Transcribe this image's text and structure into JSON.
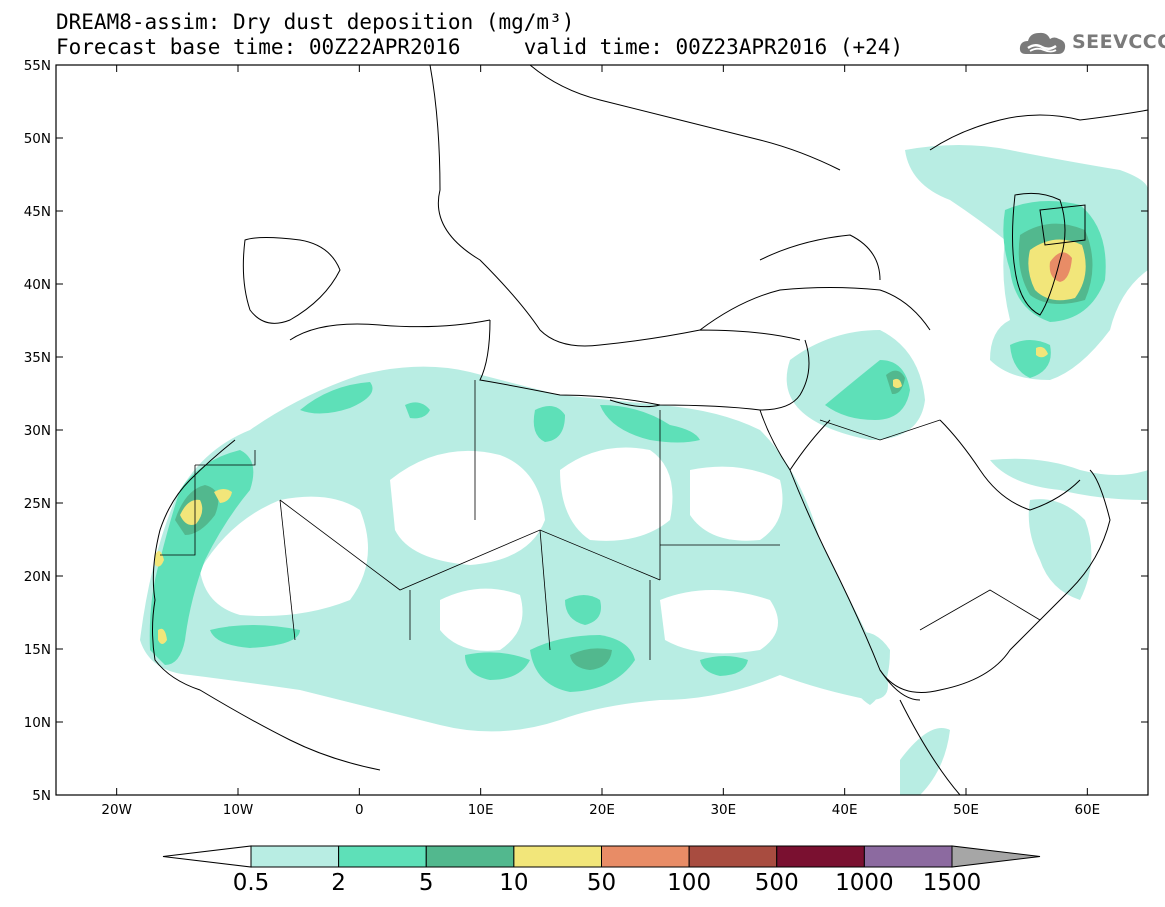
{
  "header": {
    "title_line1": "DREAM8-assim: Dry dust deposition (mg/m³)",
    "title_line2": "Forecast base time: 00Z22APR2016     valid time: 00Z23APR2016 (+24)",
    "logo_text": "SEEVCCC"
  },
  "map": {
    "projection": "lat-lon",
    "lon_range": [
      -25,
      65
    ],
    "lat_range": [
      5,
      55
    ],
    "lat_ticks": [
      {
        "value": 55,
        "label": "55N"
      },
      {
        "value": 50,
        "label": "50N"
      },
      {
        "value": 45,
        "label": "45N"
      },
      {
        "value": 40,
        "label": "40N"
      },
      {
        "value": 35,
        "label": "35N"
      },
      {
        "value": 30,
        "label": "30N"
      },
      {
        "value": 25,
        "label": "25N"
      },
      {
        "value": 20,
        "label": "20N"
      },
      {
        "value": 15,
        "label": "15N"
      },
      {
        "value": 10,
        "label": "10N"
      },
      {
        "value": 5,
        "label": "5N"
      }
    ],
    "lon_ticks": [
      {
        "value": -20,
        "label": "20W"
      },
      {
        "value": -10,
        "label": "10W"
      },
      {
        "value": 0,
        "label": "0"
      },
      {
        "value": 10,
        "label": "10E"
      },
      {
        "value": 20,
        "label": "20E"
      },
      {
        "value": 30,
        "label": "30E"
      },
      {
        "value": 40,
        "label": "40E"
      },
      {
        "value": 50,
        "label": "50E"
      },
      {
        "value": 60,
        "label": "60E"
      }
    ]
  },
  "legend": {
    "levels": [
      "0.5",
      "2",
      "5",
      "10",
      "50",
      "100",
      "500",
      "1000",
      "1500"
    ],
    "colors": [
      "#b8ede3",
      "#5ee0b8",
      "#52b88e",
      "#f2e67a",
      "#e88c66",
      "#a84c40",
      "#7a1030",
      "#8c6aa0"
    ],
    "under_color": "#ffffff",
    "over_color": "#a6a6a6"
  }
}
